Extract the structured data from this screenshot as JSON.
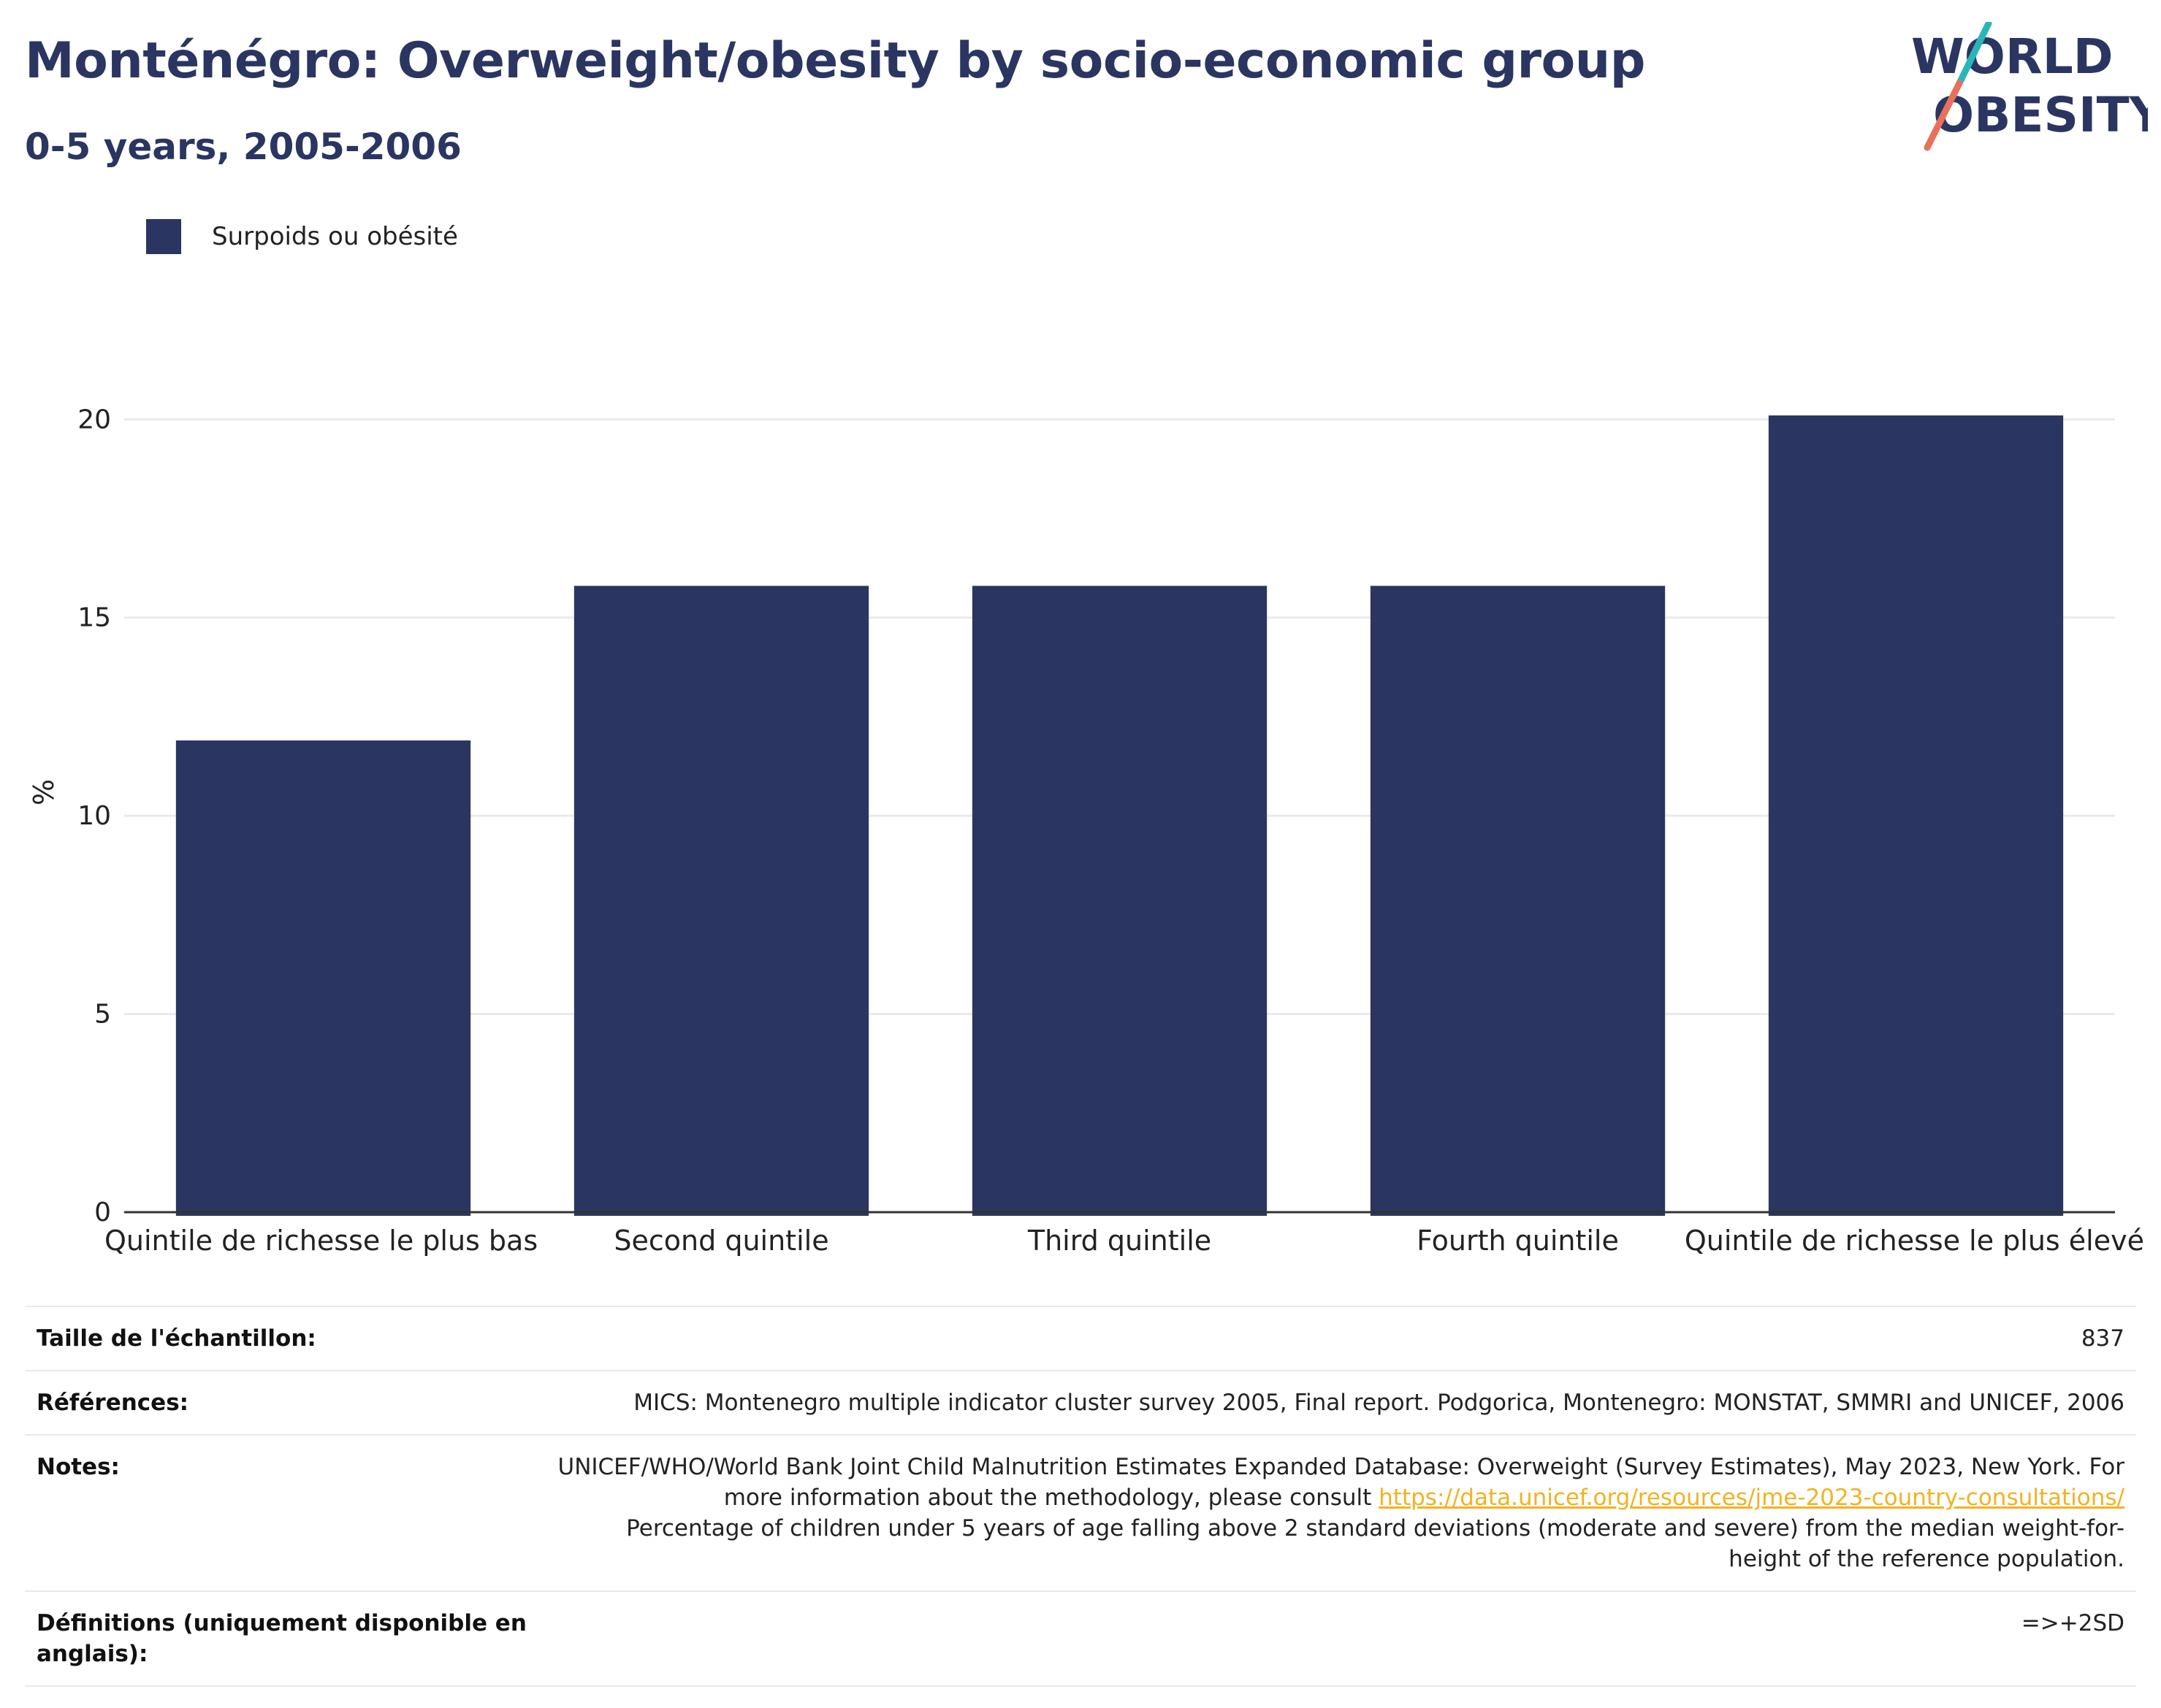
{
  "header": {
    "title": "Monténégro: Overweight/obesity by socio-economic group",
    "subtitle": "0-5 years, 2005-2006"
  },
  "logo": {
    "line1": "WORLD",
    "line2": "OBESITY"
  },
  "colors": {
    "bar": "#2a3661",
    "text_dark": "#2a3661",
    "grid": "#e8eaf0",
    "axis": "#333333",
    "link": "#f0b323",
    "logo_teal": "#2bb5b8",
    "logo_coral": "#e8705c"
  },
  "chart_data": {
    "type": "bar",
    "categories": [
      "Quintile de richesse le plus bas",
      "Second quintile",
      "Third quintile",
      "Fourth quintile",
      "Quintile de richesse le plus élevé"
    ],
    "series": [
      {
        "name": "Surpoids ou obésité",
        "values": [
          11.9,
          15.8,
          15.8,
          15.8,
          20.1
        ]
      }
    ],
    "ylabel": "%",
    "ylim": [
      0,
      21
    ],
    "yticks": [
      0,
      5,
      10,
      15,
      20
    ],
    "grid": true,
    "legend_position": "top-left"
  },
  "legend": {
    "label": "Surpoids ou obésité"
  },
  "meta": {
    "sample_size_label": "Taille de l'échantillon:",
    "sample_size_value": "837",
    "references_label": "Références:",
    "references_value": "MICS: Montenegro multiple indicator cluster survey 2005, Final report. Podgorica, Montenegro: MONSTAT, SMMRI and UNICEF, 2006",
    "notes_label": "Notes:",
    "notes_line1": "UNICEF/WHO/World Bank Joint Child Malnutrition Estimates Expanded Database: Overweight (Survey Estimates), May 2023, New York. For more information about the methodology, please consult",
    "notes_link": "https://data.unicef.org/resources/jme-2023-country-consultations/",
    "notes_line2": "Percentage of children under 5 years of age falling above 2 standard deviations (moderate and severe) from the median weight-for-height of the reference population.",
    "definitions_label": "Définitions (uniquement disponible en anglais):",
    "definitions_value": "=>+2SD"
  }
}
